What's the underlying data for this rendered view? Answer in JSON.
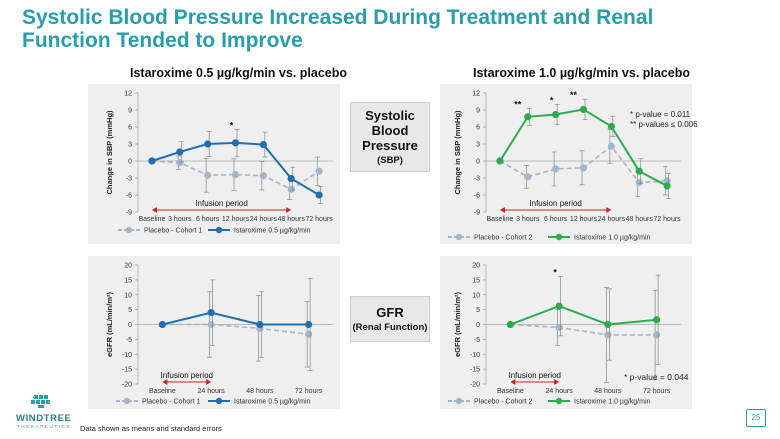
{
  "title": "Systolic Blood Pressure Increased During Treatment and Renal Function Tended to Improve",
  "col_heads": [
    "Istaroxime 0.5 µg/kg/min vs. placebo",
    "Istaroxime 1.0 µg/kg/min vs. placebo"
  ],
  "mid_boxes": [
    {
      "main": "Systolic Blood Pressure",
      "sub": "(SBP)"
    },
    {
      "main": "GFR",
      "sub": "(Renal Function)"
    }
  ],
  "sbp_annotation": [
    "*   p-value = 0.011",
    "**  p-values ≤ 0.006"
  ],
  "gfr_annotation": "* p-value = 0.044",
  "footnote": "Data shown as means and standard errors",
  "page_number": "25",
  "logo": {
    "name": "WINDTREE",
    "sub": "THERAPEUTICS"
  },
  "colors": {
    "accent": "#2a9dab",
    "placebo": "#a3b6c9",
    "ista05": "#1f6fb2",
    "ista10": "#2eaa4f",
    "infusion": "#cc2222"
  },
  "chart_data": [
    {
      "type": "line",
      "title": "",
      "xlabel": "",
      "ylabel": "Change in SBP (mmHg)",
      "categories": [
        "Baseline",
        "3 hours",
        "6 hours",
        "12 hours",
        "24 hours",
        "48 hours",
        "72 hours"
      ],
      "yticks": [
        "12",
        "9",
        "6",
        "3",
        "0",
        "-3",
        "-6",
        "-9"
      ],
      "ylim": [
        -9,
        12
      ],
      "infusion_label": "Infusion period",
      "infusion_range": [
        0,
        5
      ],
      "series": [
        {
          "name": "Placebo - Cohort 1",
          "style": "dashed",
          "color": "#a3b6c9",
          "values": [
            0,
            -0.3,
            -2.5,
            -2.4,
            -2.6,
            -5,
            -1.8
          ],
          "errors": [
            0,
            1.2,
            3,
            2.8,
            2.5,
            1.8,
            2.5
          ]
        },
        {
          "name": "Istaroxime 0.5 µg/kg/min",
          "style": "solid",
          "color": "#1f6fb2",
          "values": [
            0,
            1.6,
            3,
            3.2,
            2.9,
            -3.1,
            -6
          ],
          "errors": [
            0,
            1.8,
            2.2,
            2.4,
            2.2,
            2,
            1.5
          ]
        }
      ],
      "markers": [
        {
          "index": 3,
          "text": "*"
        }
      ]
    },
    {
      "type": "line",
      "title": "",
      "xlabel": "",
      "ylabel": "Change in SBP (mmHg)",
      "categories": [
        "Baseline",
        "3 hours",
        "6 hours",
        "12 hours",
        "24 hours",
        "48 hours",
        "72 hours"
      ],
      "yticks": [
        "12",
        "9",
        "6",
        "3",
        "0",
        "-3",
        "-6",
        "-9"
      ],
      "ylim": [
        -9,
        12
      ],
      "infusion_label": "Infusion period",
      "infusion_range": [
        0,
        4
      ],
      "series": [
        {
          "name": "Placebo - Cohort 2",
          "style": "dashed",
          "color": "#a3b6c9",
          "values": [
            0,
            -2.8,
            -1.4,
            -1.2,
            2.6,
            -3.8,
            -3.5
          ],
          "errors": [
            0,
            2,
            3,
            3,
            3,
            2.5,
            2.5
          ]
        },
        {
          "name": "Istaroxime 1.0 µg/kg/min",
          "style": "solid",
          "color": "#2eaa4f",
          "values": [
            0,
            7.8,
            8.2,
            9.1,
            6.1,
            -1.8,
            -4.4
          ],
          "errors": [
            0,
            1.5,
            1.8,
            1.8,
            1.8,
            2.2,
            2.2
          ]
        }
      ],
      "markers": [
        {
          "index": 1,
          "text": "**"
        },
        {
          "index": 2,
          "text": "*"
        },
        {
          "index": 3,
          "text": "**"
        }
      ]
    },
    {
      "type": "line",
      "title": "",
      "xlabel": "",
      "ylabel": "eGFR (mL/min/m²)",
      "categories": [
        "Baseline",
        "24 hours",
        "48 hours",
        "72 hours"
      ],
      "yticks": [
        "20",
        "15",
        "10",
        "5",
        "0",
        "-5",
        "-10",
        "-15",
        "-20"
      ],
      "ylim": [
        -20,
        20
      ],
      "infusion_label": "Infusion period",
      "infusion_range": [
        0,
        1
      ],
      "series": [
        {
          "name": "Placebo - Cohort 1",
          "style": "dashed",
          "color": "#a3b6c9",
          "values": [
            0,
            0,
            -1.3,
            -3.3
          ],
          "errors": [
            0,
            11,
            11,
            11
          ]
        },
        {
          "name": "Istaroxime 0.5 µg/kg/min",
          "style": "solid",
          "color": "#1f6fb2",
          "values": [
            0,
            4,
            0,
            0
          ],
          "errors": [
            0,
            11,
            11,
            15.5
          ]
        }
      ],
      "markers": []
    },
    {
      "type": "line",
      "title": "",
      "xlabel": "",
      "ylabel": "eGFR (mL/min/m²)",
      "categories": [
        "Baseline",
        "24 hours",
        "48 hours",
        "72 hours"
      ],
      "yticks": [
        "20",
        "15",
        "10",
        "5",
        "0",
        "-5",
        "-10",
        "-15",
        "-20"
      ],
      "ylim": [
        -20,
        20
      ],
      "infusion_label": "Infusion period",
      "infusion_range": [
        0,
        1
      ],
      "series": [
        {
          "name": "Placebo - Cohort 2",
          "style": "dashed",
          "color": "#a3b6c9",
          "values": [
            0,
            -1,
            -3.5,
            -3.5
          ],
          "errors": [
            0,
            6,
            16,
            15
          ]
        },
        {
          "name": "Istaroxime 1.0 µg/kg/min",
          "style": "solid",
          "color": "#2eaa4f",
          "values": [
            0,
            6.2,
            0,
            1.6
          ],
          "errors": [
            0,
            10,
            12,
            15
          ]
        }
      ],
      "markers": [
        {
          "index": 1,
          "text": "*"
        }
      ]
    }
  ]
}
